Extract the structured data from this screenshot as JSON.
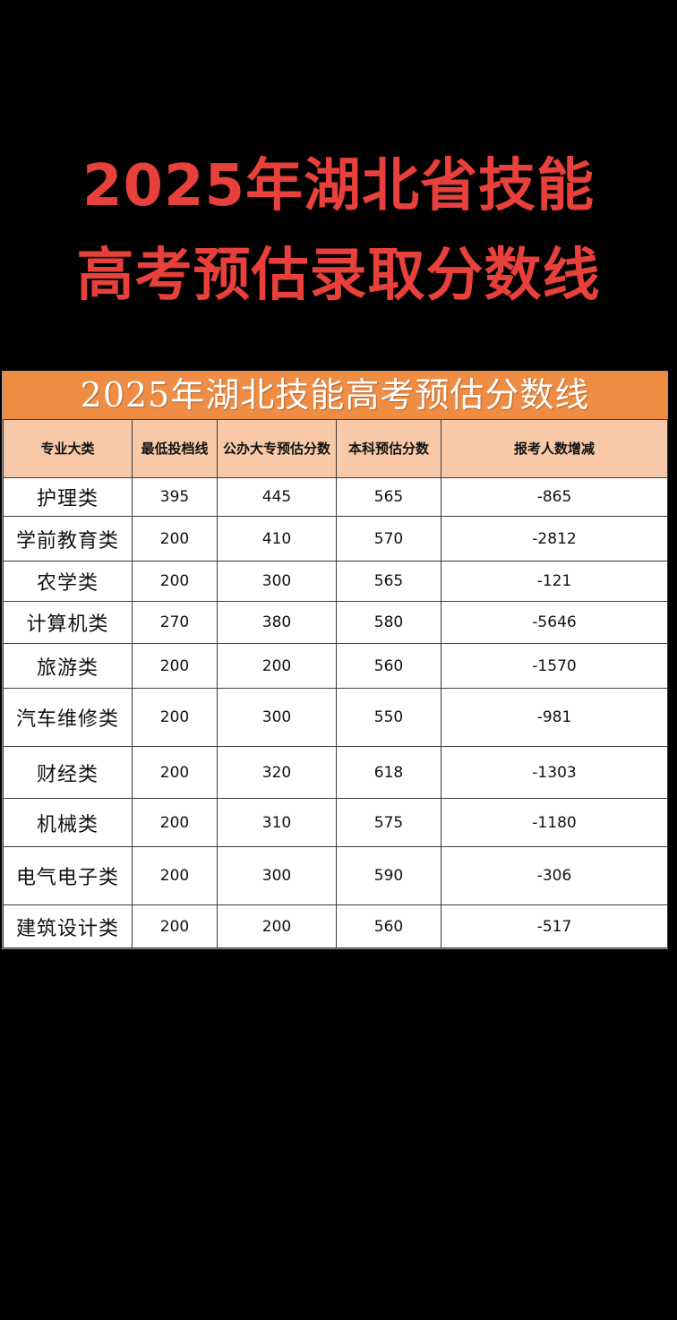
{
  "headline": {
    "line1": "2025年湖北省技能",
    "line2": "高考预估录取分数线"
  },
  "table": {
    "title": "2025年湖北技能高考预估分数线",
    "headers": [
      "专业大类",
      "最低投档线",
      "公办大专预估分数",
      "本科预估分数",
      "报考人数增减"
    ],
    "rows": [
      {
        "major": "护理类",
        "min": "395",
        "college": "445",
        "bachelor": "565",
        "change": "-865"
      },
      {
        "major": "学前教育类",
        "min": "200",
        "college": "410",
        "bachelor": "570",
        "change": "-2812"
      },
      {
        "major": "农学类",
        "min": "200",
        "college": "300",
        "bachelor": "565",
        "change": "-121"
      },
      {
        "major": "计算机类",
        "min": "270",
        "college": "380",
        "bachelor": "580",
        "change": "-5646"
      },
      {
        "major": "旅游类",
        "min": "200",
        "college": "200",
        "bachelor": "560",
        "change": "-1570"
      },
      {
        "major": "汽车维修类",
        "min": "200",
        "college": "300",
        "bachelor": "550",
        "change": "-981"
      },
      {
        "major": "财经类",
        "min": "200",
        "college": "320",
        "bachelor": "618",
        "change": "-1303"
      },
      {
        "major": "机械类",
        "min": "200",
        "college": "310",
        "bachelor": "575",
        "change": "-1180"
      },
      {
        "major": "电气电子类",
        "min": "200",
        "college": "300",
        "bachelor": "590",
        "change": "-306"
      },
      {
        "major": "建筑设计类",
        "min": "200",
        "college": "200",
        "bachelor": "560",
        "change": "-517"
      }
    ]
  },
  "colors": {
    "headline": "#e8403a",
    "title_bar": "#ef8d45",
    "header_row": "#f7c9a8",
    "background": "#000000"
  }
}
